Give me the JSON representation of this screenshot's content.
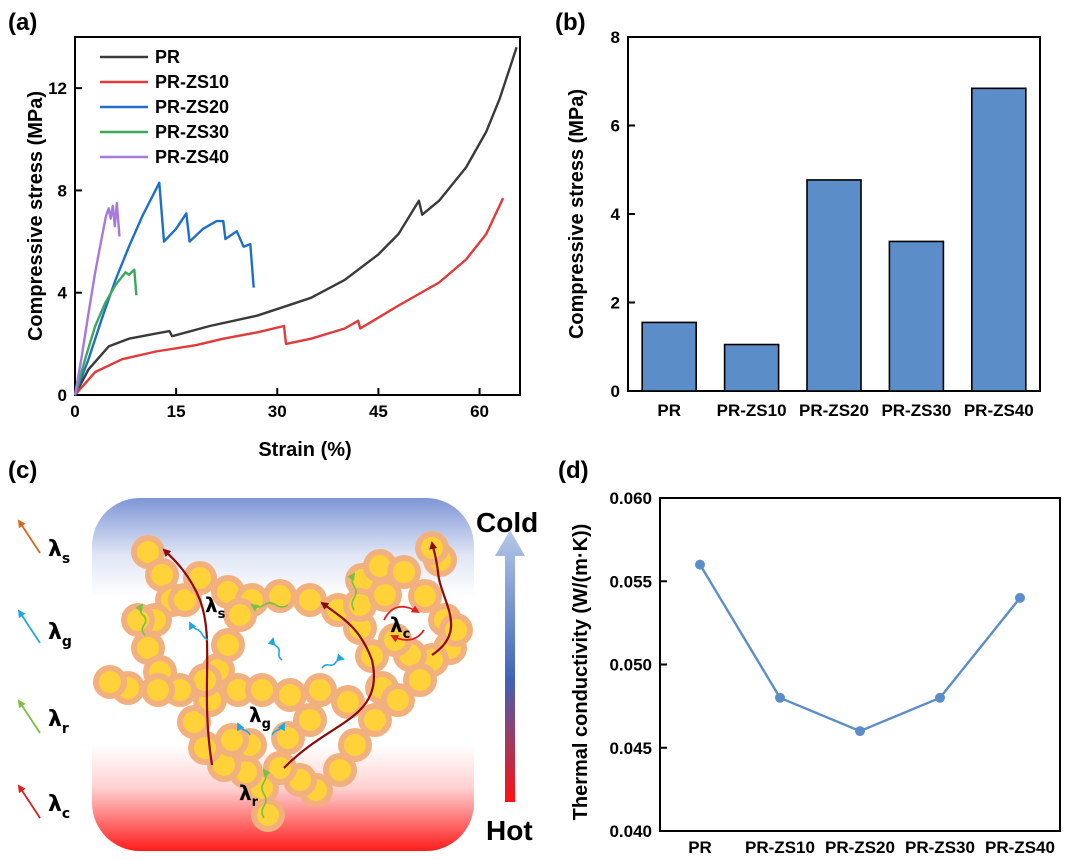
{
  "panels": {
    "a": "(a)",
    "b": "(b)",
    "c": "(c)",
    "d": "(d)"
  },
  "chart_data": [
    {
      "id": "a",
      "type": "line",
      "xlabel": "Strain (%)",
      "ylabel": "Compressive stress (MPa)",
      "xlim": [
        0,
        66
      ],
      "ylim": [
        0,
        14
      ],
      "xticks": [
        0,
        15,
        30,
        45,
        60
      ],
      "yticks": [
        0,
        4,
        8,
        12
      ],
      "legend_position": "top-left",
      "series": [
        {
          "name": "PR",
          "color": "#3a3a3a",
          "points": [
            [
              0,
              0
            ],
            [
              2,
              1.0
            ],
            [
              5,
              1.9
            ],
            [
              8,
              2.2
            ],
            [
              12,
              2.4
            ],
            [
              14,
              2.5
            ],
            [
              14.4,
              2.3
            ],
            [
              20,
              2.7
            ],
            [
              27,
              3.1
            ],
            [
              31,
              3.45
            ],
            [
              35,
              3.8
            ],
            [
              40,
              4.5
            ],
            [
              45,
              5.5
            ],
            [
              48,
              6.3
            ],
            [
              51,
              7.6
            ],
            [
              51.5,
              7.05
            ],
            [
              54,
              7.6
            ],
            [
              58,
              8.9
            ],
            [
              61,
              10.3
            ],
            [
              63,
              11.6
            ],
            [
              64.5,
              12.8
            ],
            [
              65.5,
              13.6
            ]
          ]
        },
        {
          "name": "PR-ZS10",
          "color": "#e03a3a",
          "points": [
            [
              0,
              0
            ],
            [
              3,
              0.9
            ],
            [
              7,
              1.4
            ],
            [
              12,
              1.7
            ],
            [
              18,
              1.95
            ],
            [
              22,
              2.2
            ],
            [
              27,
              2.45
            ],
            [
              31,
              2.7
            ],
            [
              31.3,
              2.0
            ],
            [
              35,
              2.2
            ],
            [
              40,
              2.6
            ],
            [
              42,
              2.9
            ],
            [
              42.3,
              2.6
            ],
            [
              48,
              3.5
            ],
            [
              54,
              4.4
            ],
            [
              58,
              5.3
            ],
            [
              61,
              6.3
            ],
            [
              63.5,
              7.7
            ]
          ]
        },
        {
          "name": "PR-ZS20",
          "color": "#1e6fc8",
          "points": [
            [
              0,
              0
            ],
            [
              2,
              1.4
            ],
            [
              4,
              3.0
            ],
            [
              6,
              4.5
            ],
            [
              8,
              5.8
            ],
            [
              10,
              7.0
            ],
            [
              12.5,
              8.3
            ],
            [
              13.2,
              6.0
            ],
            [
              15,
              6.5
            ],
            [
              16.5,
              7.1
            ],
            [
              17,
              6.0
            ],
            [
              19,
              6.5
            ],
            [
              21,
              6.8
            ],
            [
              22,
              6.8
            ],
            [
              22.3,
              6.1
            ],
            [
              24,
              6.4
            ],
            [
              25,
              5.8
            ],
            [
              26,
              5.9
            ],
            [
              26.5,
              4.2
            ]
          ]
        },
        {
          "name": "PR-ZS30",
          "color": "#3ea85a",
          "points": [
            [
              0,
              0
            ],
            [
              1.5,
              1.4
            ],
            [
              3,
              2.7
            ],
            [
              4.5,
              3.6
            ],
            [
              6,
              4.3
            ],
            [
              7.5,
              4.8
            ],
            [
              8,
              4.7
            ],
            [
              8.8,
              4.9
            ],
            [
              9.1,
              3.9
            ]
          ]
        },
        {
          "name": "PR-ZS40",
          "color": "#a678e0",
          "points": [
            [
              0,
              0
            ],
            [
              1,
              1.5
            ],
            [
              2,
              3.2
            ],
            [
              3,
              4.8
            ],
            [
              4,
              6.2
            ],
            [
              4.6,
              7.0
            ],
            [
              5,
              7.3
            ],
            [
              5.3,
              6.9
            ],
            [
              5.6,
              7.4
            ],
            [
              5.9,
              6.6
            ],
            [
              6.2,
              7.5
            ],
            [
              6.6,
              6.2
            ]
          ]
        }
      ]
    },
    {
      "id": "b",
      "type": "bar",
      "ylabel": "Compressive stress (MPa)",
      "ylim": [
        0,
        8
      ],
      "yticks": [
        0,
        2,
        4,
        6,
        8
      ],
      "categories": [
        "PR",
        "PR-ZS10",
        "PR-ZS20",
        "PR-ZS30",
        "PR-ZS40"
      ],
      "values": [
        1.55,
        1.05,
        4.77,
        3.38,
        6.84
      ],
      "color": "#5b8ec8"
    },
    {
      "id": "d",
      "type": "line",
      "ylabel": "Thermal conductivity (W/(m·K))",
      "ylim": [
        0.04,
        0.06
      ],
      "yticks": [
        "0.040",
        "0.045",
        "0.050",
        "0.055",
        "0.060"
      ],
      "categories": [
        "PR",
        "PR-ZS10",
        "PR-ZS20",
        "PR-ZS30",
        "PR-ZS40"
      ],
      "values": [
        0.056,
        0.048,
        0.046,
        0.048,
        0.054
      ],
      "color": "#5b8ec8"
    }
  ],
  "diagram_c": {
    "legend": [
      {
        "symbol": "λ",
        "sub": "s",
        "color": "#d2691e"
      },
      {
        "symbol": "λ",
        "sub": "g",
        "color": "#1fa8e0"
      },
      {
        "symbol": "λ",
        "sub": "r",
        "color": "#7ac142"
      },
      {
        "symbol": "λ",
        "sub": "c",
        "color": "#e02020"
      }
    ],
    "inner_labels": [
      {
        "symbol": "λ",
        "sub": "s"
      },
      {
        "symbol": "λ",
        "sub": "c"
      },
      {
        "symbol": "λ",
        "sub": "g"
      },
      {
        "symbol": "λ",
        "sub": "r"
      }
    ],
    "cold": "Cold",
    "hot": "Hot"
  }
}
